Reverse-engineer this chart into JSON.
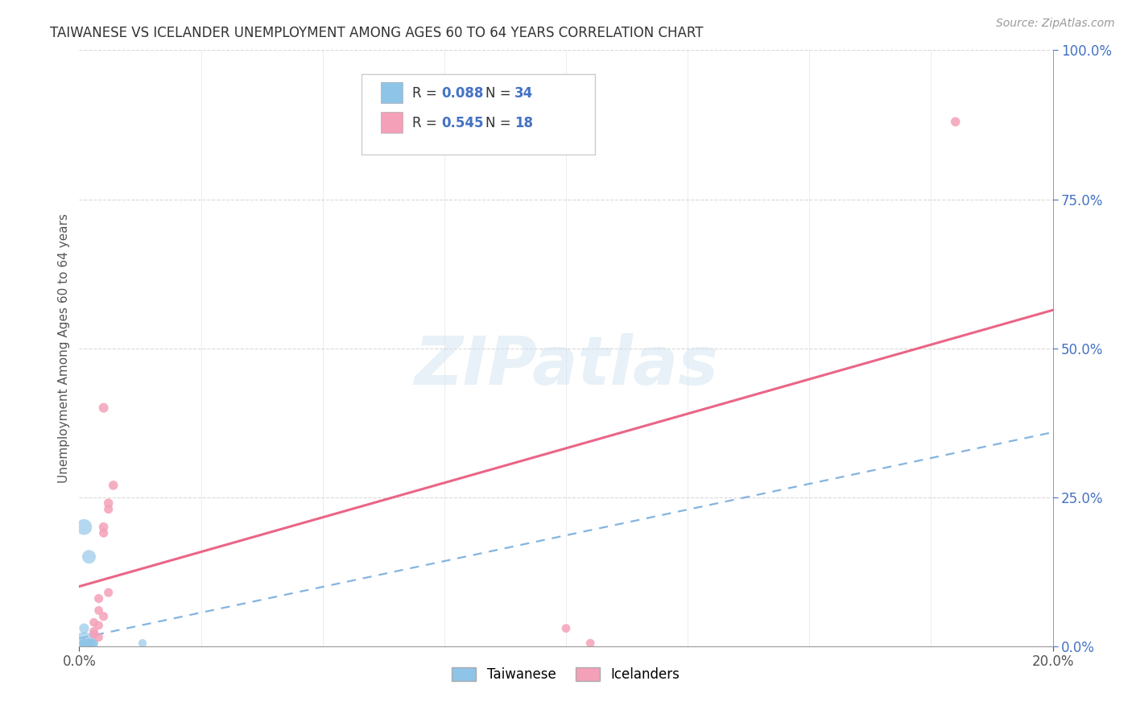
{
  "title": "TAIWANESE VS ICELANDER UNEMPLOYMENT AMONG AGES 60 TO 64 YEARS CORRELATION CHART",
  "source": "Source: ZipAtlas.com",
  "ylabel": "Unemployment Among Ages 60 to 64 years",
  "xlim": [
    0.0,
    0.2
  ],
  "ylim": [
    0.0,
    1.0
  ],
  "xtick_positions": [
    0.0,
    0.2
  ],
  "xtick_labels": [
    "0.0%",
    "20.0%"
  ],
  "ytick_positions": [
    0.0,
    0.25,
    0.5,
    0.75,
    1.0
  ],
  "ytick_labels": [
    "0.0%",
    "25.0%",
    "50.0%",
    "75.0%",
    "100.0%"
  ],
  "taiwanese_color": "#8ec4e8",
  "icelander_color": "#f4a0b8",
  "taiwanese_R": 0.088,
  "taiwanese_N": 34,
  "icelander_R": 0.545,
  "icelander_N": 18,
  "watermark": "ZIPatlas",
  "taiwanese_x": [
    0.001,
    0.002,
    0.001,
    0.003,
    0.001,
    0.002,
    0.001,
    0.001,
    0.001,
    0.002,
    0.003,
    0.001,
    0.002,
    0.001,
    0.001,
    0.002,
    0.001,
    0.003,
    0.002,
    0.001,
    0.001,
    0.001,
    0.001,
    0.002,
    0.001,
    0.001,
    0.001,
    0.002,
    0.001,
    0.013,
    0.001,
    0.001,
    0.001,
    0.001
  ],
  "taiwanese_y": [
    0.2,
    0.15,
    0.03,
    0.02,
    0.005,
    0.005,
    0.005,
    0.005,
    0.005,
    0.005,
    0.005,
    0.005,
    0.005,
    0.005,
    0.005,
    0.005,
    0.005,
    0.005,
    0.005,
    0.005,
    0.005,
    0.005,
    0.005,
    0.005,
    0.005,
    0.005,
    0.005,
    0.005,
    0.005,
    0.005,
    0.005,
    0.005,
    0.005,
    0.005
  ],
  "taiwanese_sizes": [
    200,
    150,
    80,
    60,
    400,
    80,
    70,
    60,
    55,
    60,
    60,
    55,
    60,
    55,
    60,
    60,
    55,
    60,
    55,
    55,
    55,
    55,
    55,
    55,
    55,
    55,
    55,
    55,
    55,
    55,
    55,
    55,
    55,
    55
  ],
  "icelander_x": [
    0.003,
    0.004,
    0.005,
    0.006,
    0.005,
    0.004,
    0.003,
    0.005,
    0.006,
    0.004,
    0.1,
    0.105,
    0.005,
    0.007,
    0.006,
    0.003,
    0.004,
    0.18
  ],
  "icelander_y": [
    0.04,
    0.06,
    0.2,
    0.23,
    0.19,
    0.08,
    0.02,
    0.05,
    0.09,
    0.015,
    0.03,
    0.005,
    0.4,
    0.27,
    0.24,
    0.025,
    0.035,
    0.88
  ],
  "icelander_sizes": [
    60,
    60,
    70,
    65,
    65,
    65,
    60,
    65,
    65,
    60,
    60,
    60,
    75,
    70,
    70,
    60,
    60,
    70
  ],
  "background_color": "#ffffff",
  "grid_color": "#d0d0d0",
  "title_color": "#333333",
  "axis_label_color": "#555555",
  "tick_color_x": "#555555",
  "tick_color_y": "#4472c4",
  "regression_blue_color": "#5b9bd5",
  "regression_pink_color": "#e8547a"
}
